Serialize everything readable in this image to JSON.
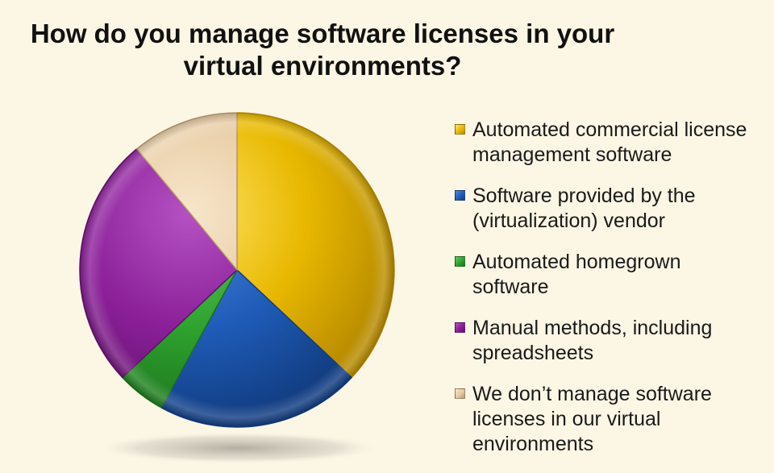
{
  "chart_data": {
    "type": "pie",
    "title_lines": [
      "How do you manage software licenses in your",
      "virtual environments?"
    ],
    "slices": [
      {
        "label_lines": [
          "Automated commercial license",
          "management software"
        ],
        "value": 37,
        "color": "#e8b800",
        "dark": "#b98c00",
        "light": "#ffe46a"
      },
      {
        "label_lines": [
          "Software provided by the",
          "(virtualization) vendor"
        ],
        "value": 21,
        "color": "#1f5cb8",
        "dark": "#123d82",
        "light": "#4f88de"
      },
      {
        "label_lines": [
          "Automated homegrown",
          "software"
        ],
        "value": 5,
        "color": "#2ea12e",
        "dark": "#1c721c",
        "light": "#5fcd5f"
      },
      {
        "label_lines": [
          "Manual methods, including",
          "spreadsheets"
        ],
        "value": 26,
        "color": "#8a1f98",
        "dark": "#5f1269",
        "light": "#b552c3"
      },
      {
        "label_lines": [
          "We don’t manage software",
          "licenses in our virtual",
          "environments"
        ],
        "value": 11,
        "color": "#e6c9a0",
        "dark": "#b99a6e",
        "light": "#f7e6cb"
      }
    ],
    "legend_position": "right"
  }
}
